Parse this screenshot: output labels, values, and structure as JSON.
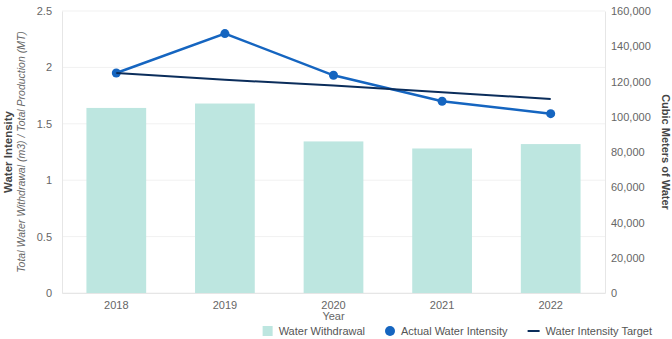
{
  "chart_data": {
    "type": "bar",
    "xlabel": "Year",
    "ylabel": [
      "Water Intensity",
      "Total Water Withdrawal (m3) / Total Production (MT)"
    ],
    "y2label": "Cubic Meters of Water",
    "categories": [
      "2018",
      "2019",
      "2020",
      "2021",
      "2022"
    ],
    "series": [
      {
        "name": "Water Withdrawal",
        "type": "bar",
        "axis": "y2",
        "color": "#bde6e0",
        "values": [
          105000,
          107500,
          86000,
          82000,
          84500
        ]
      },
      {
        "name": "Actual Water Intensity",
        "type": "line",
        "marker": "circle",
        "color": "#1565c0",
        "values": [
          1.95,
          2.3,
          1.93,
          1.7,
          1.59
        ]
      },
      {
        "name": "Water Intensity Target",
        "type": "line",
        "color": "#0b2d5b",
        "values": [
          1.95,
          1.89,
          1.84,
          1.78,
          1.72
        ]
      }
    ],
    "ylim": [
      0,
      2.5
    ],
    "yticks": [
      0,
      0.5,
      1,
      1.5,
      2,
      2.5
    ],
    "y2lim": [
      0,
      160000
    ],
    "y2ticks": [
      0,
      {
        "value": 20000,
        "label": "20,000"
      },
      {
        "value": 40000,
        "label": "40,000"
      },
      {
        "value": 60000,
        "label": "60,000"
      },
      {
        "value": 80000,
        "label": "80,000"
      },
      {
        "value": 100000,
        "label": "100,000"
      },
      {
        "value": 120000,
        "label": "120,000"
      },
      {
        "value": 140000,
        "label": "140,000"
      },
      {
        "value": 160000,
        "label": "160,000"
      }
    ],
    "grid": true,
    "legend": "bottom-right"
  }
}
